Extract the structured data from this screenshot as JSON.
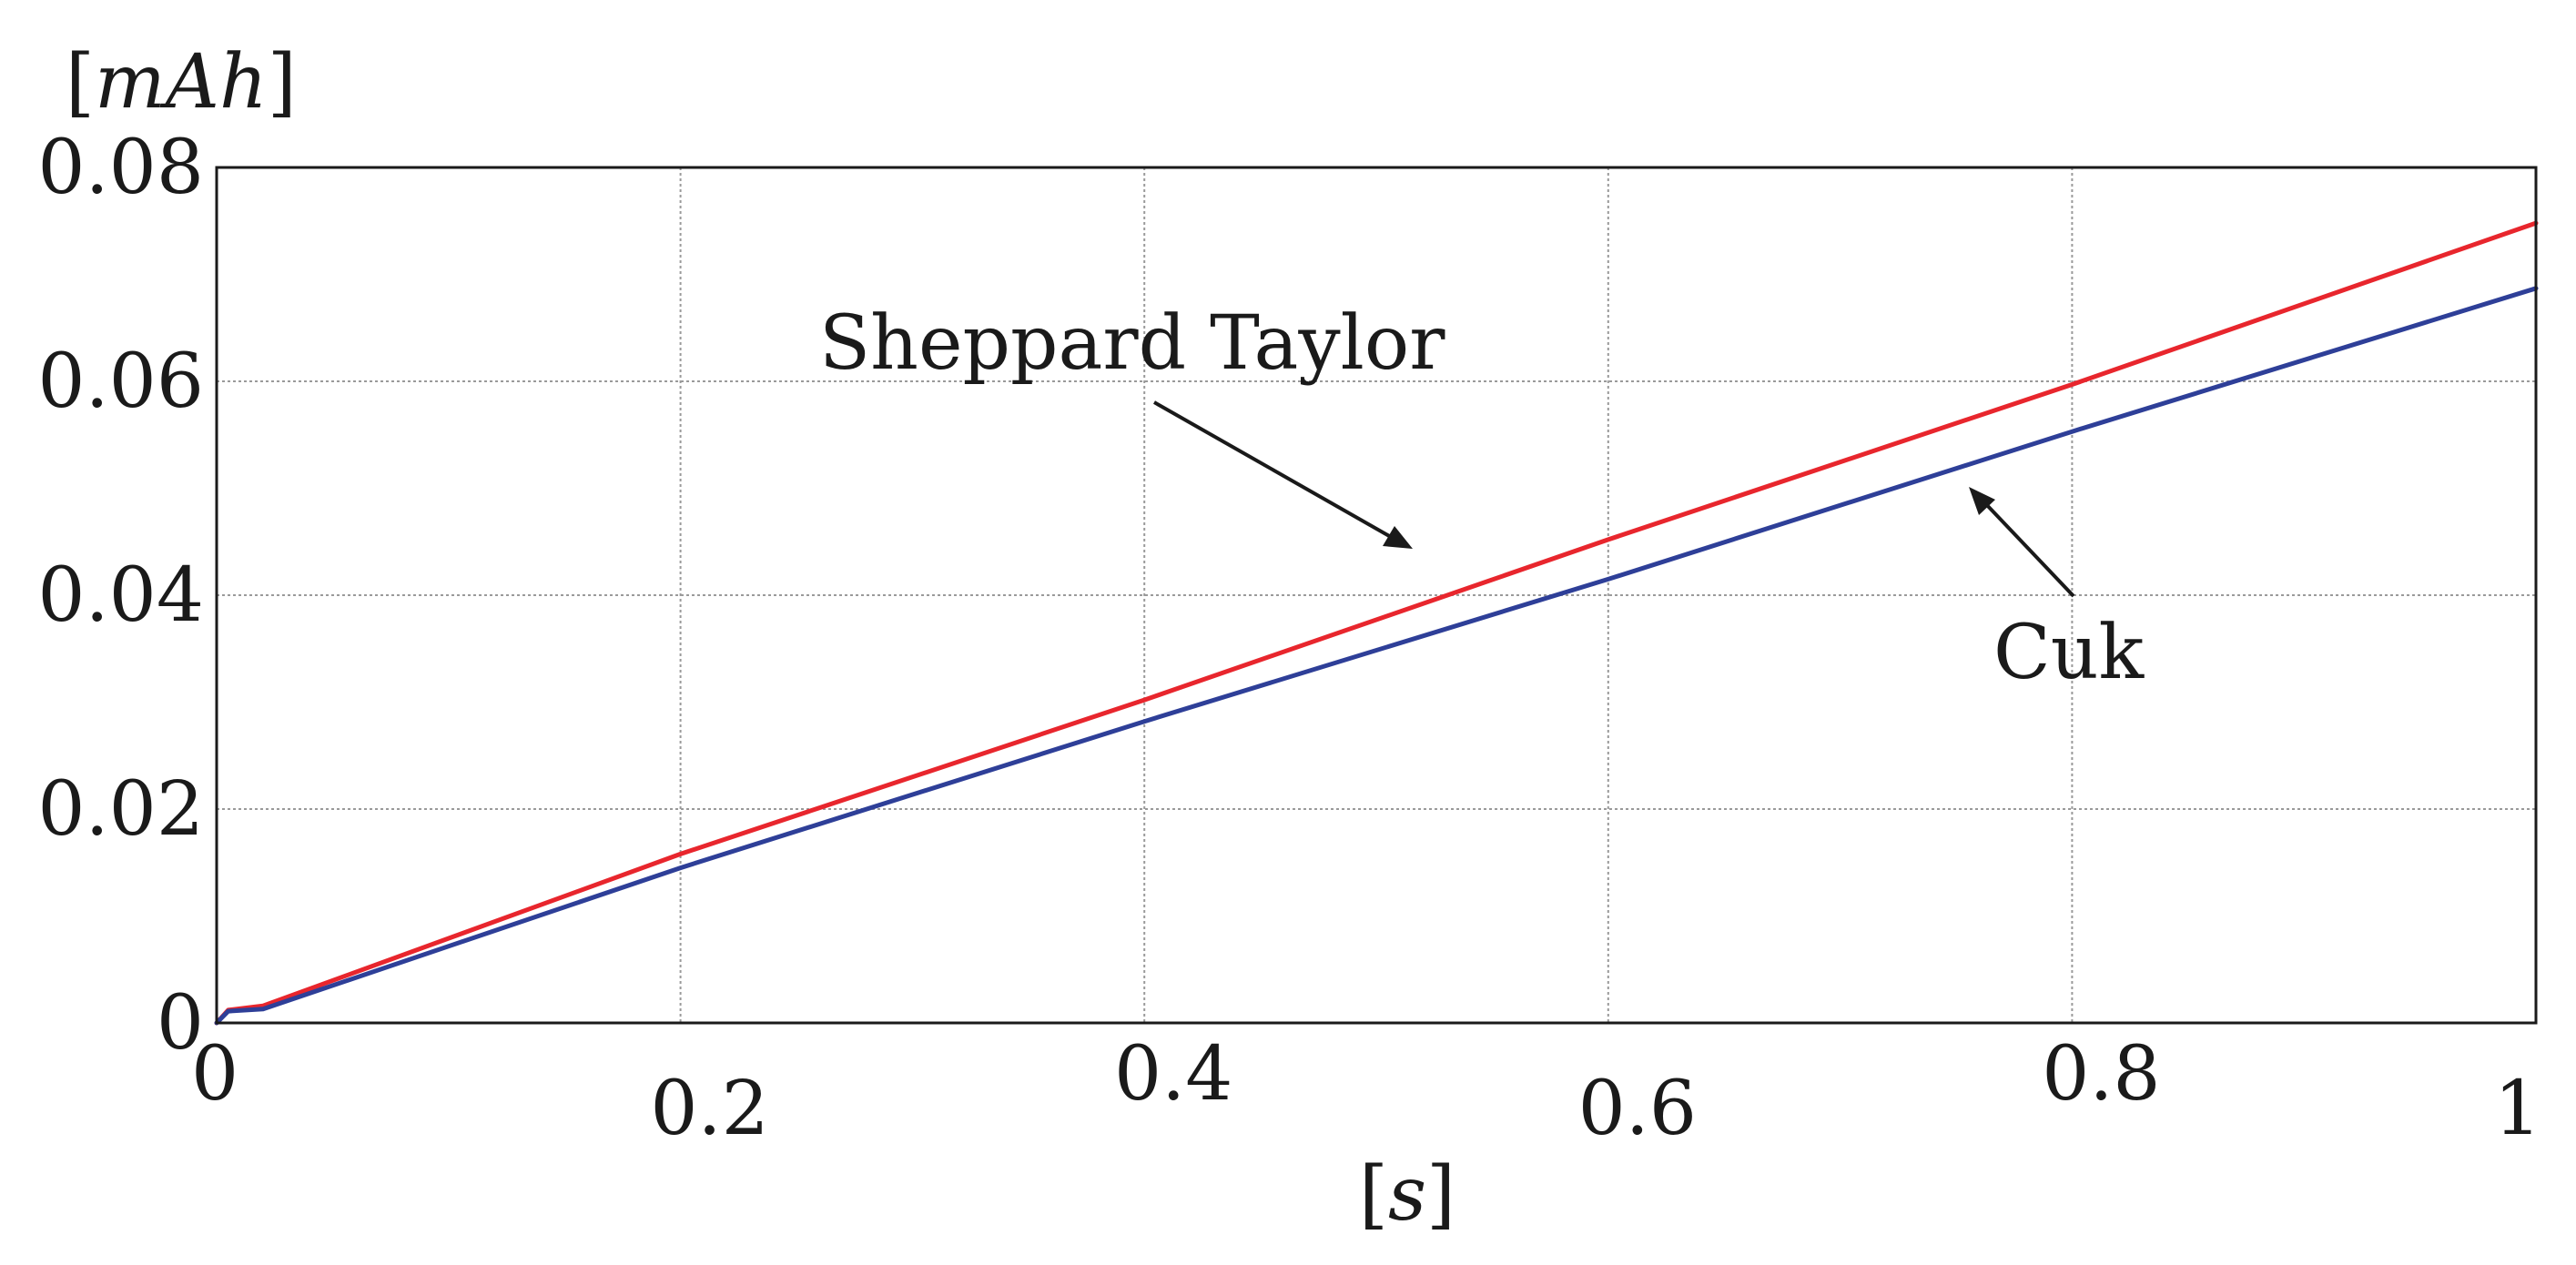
{
  "chart_data": {
    "type": "line",
    "xlabel": "[s]",
    "ylabel": "[mAh]",
    "xlim": [
      0,
      1
    ],
    "ylim": [
      0,
      0.08
    ],
    "grid": true,
    "x_ticks": [
      "0",
      "0.2",
      "0.4",
      "0.6",
      "0.8",
      "1"
    ],
    "y_ticks": [
      "0",
      "0.02",
      "0.04",
      "0.06",
      "0.08"
    ],
    "series": [
      {
        "name": "Sheppard Taylor",
        "color": "#e8262d",
        "points": [
          [
            0,
            0
          ],
          [
            0.005,
            0.0012
          ],
          [
            0.02,
            0.0016
          ],
          [
            0.2,
            0.0158
          ],
          [
            0.4,
            0.0302
          ],
          [
            0.6,
            0.0452
          ],
          [
            0.8,
            0.0597
          ],
          [
            1.0,
            0.0748
          ]
        ]
      },
      {
        "name": "Cuk",
        "color": "#2e3f98",
        "points": [
          [
            0,
            0
          ],
          [
            0.005,
            0.0011
          ],
          [
            0.02,
            0.0013
          ],
          [
            0.2,
            0.0145
          ],
          [
            0.4,
            0.0282
          ],
          [
            0.6,
            0.0415
          ],
          [
            0.8,
            0.0553
          ],
          [
            1.0,
            0.0687
          ]
        ]
      }
    ],
    "annotations": [
      {
        "text": "Sheppard Taylor",
        "series": "Sheppard Taylor"
      },
      {
        "text": "Cuk",
        "series": "Cuk"
      }
    ]
  }
}
